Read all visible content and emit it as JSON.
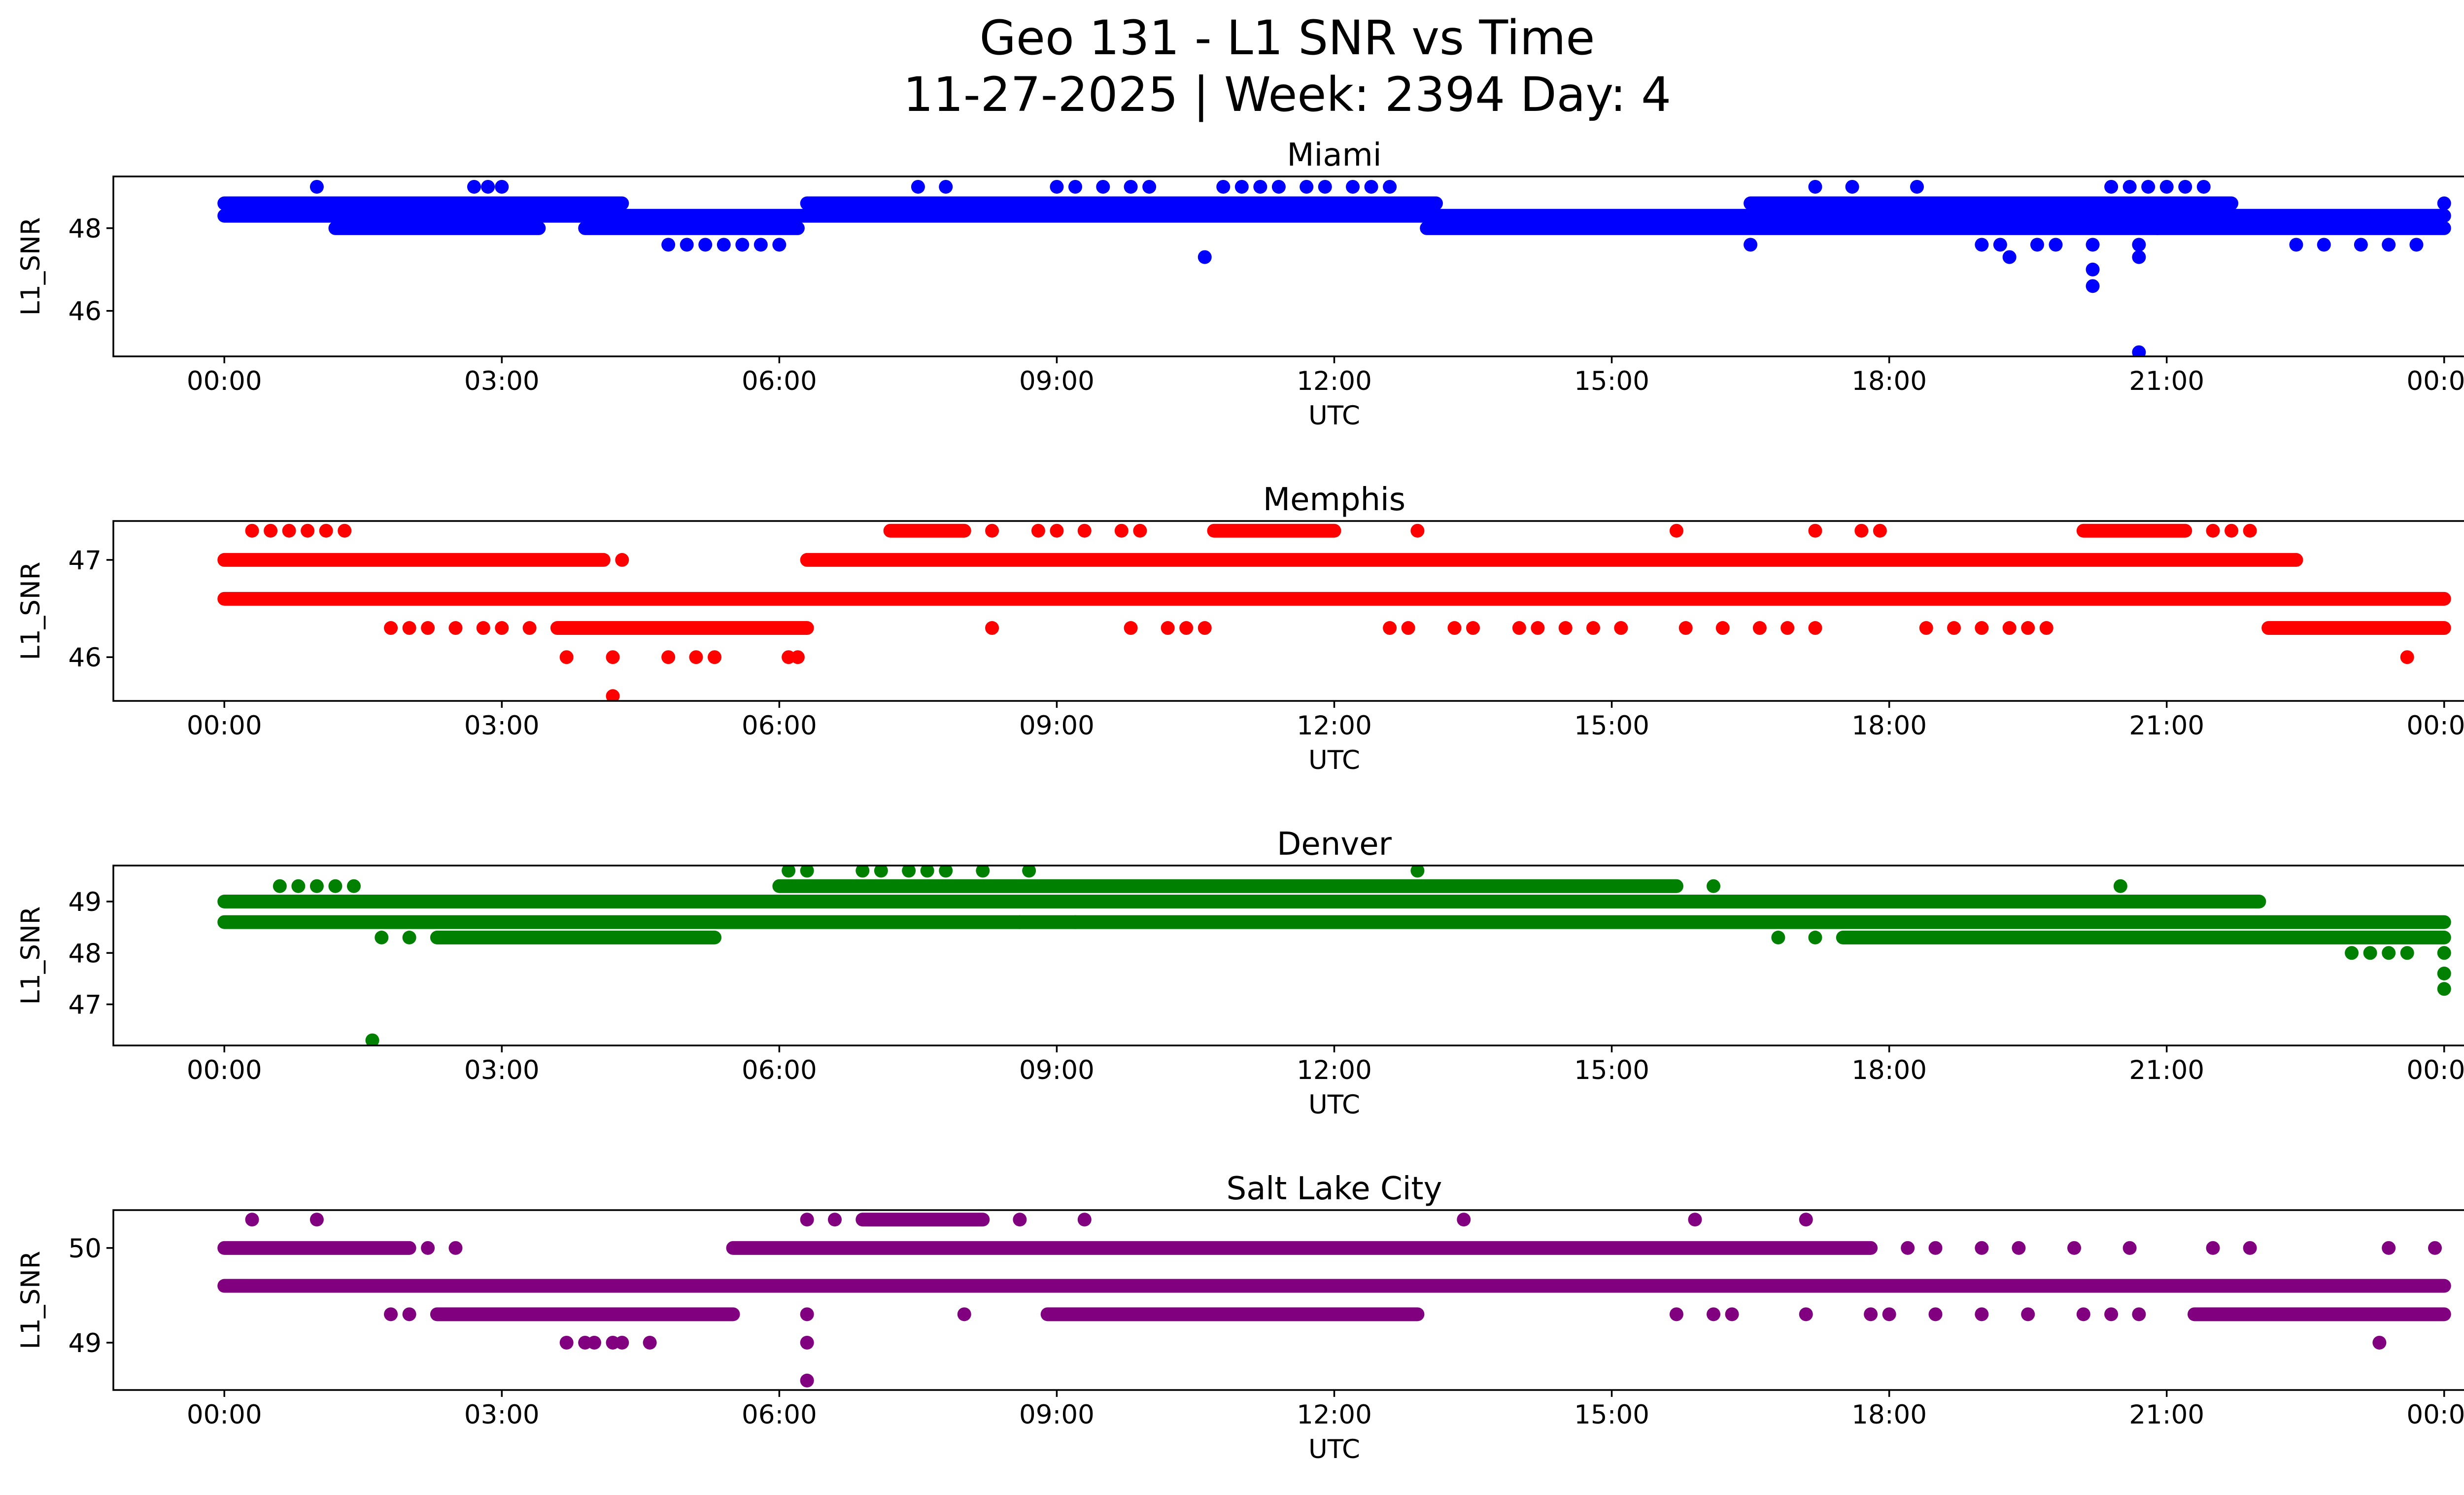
{
  "figure": {
    "title_line1": "Geo 131 - L1 SNR vs Time",
    "title_line2": "11-27-2025 | Week: 2394 Day: 4"
  },
  "chart_data": [
    {
      "type": "scatter",
      "title": "Miami",
      "xlabel": "UTC",
      "ylabel": "L1_SNR",
      "color": "#0000ff",
      "xlim_hours": [
        -1.2,
        25.2
      ],
      "ylim": [
        44.9,
        49.25
      ],
      "yticks": [
        46,
        48
      ],
      "ytick_labels": [
        "46",
        "48"
      ],
      "xticks_hours": [
        0,
        3,
        6,
        9,
        12,
        15,
        18,
        21,
        24
      ],
      "xtick_labels": [
        "00:00",
        "03:00",
        "06:00",
        "09:00",
        "12:00",
        "15:00",
        "18:00",
        "21:00",
        "00:00"
      ],
      "bands": [
        {
          "y": 48.3,
          "from": 0.0,
          "to": 24.0
        },
        {
          "y": 48.6,
          "from": 0.0,
          "to": 4.3
        },
        {
          "y": 48.6,
          "from": 6.3,
          "to": 13.1
        },
        {
          "y": 48.6,
          "from": 16.5,
          "to": 21.7
        },
        {
          "y": 48.0,
          "from": 1.2,
          "to": 3.4
        },
        {
          "y": 48.0,
          "from": 3.9,
          "to": 6.2
        },
        {
          "y": 48.0,
          "from": 13.0,
          "to": 24.0
        }
      ],
      "points": [
        [
          1.0,
          49.0
        ],
        [
          2.7,
          49.0
        ],
        [
          2.85,
          49.0
        ],
        [
          3.0,
          49.0
        ],
        [
          7.5,
          49.0
        ],
        [
          7.8,
          49.0
        ],
        [
          9.0,
          49.0
        ],
        [
          9.2,
          49.0
        ],
        [
          9.5,
          49.0
        ],
        [
          9.8,
          49.0
        ],
        [
          10.0,
          49.0
        ],
        [
          10.8,
          49.0
        ],
        [
          11.0,
          49.0
        ],
        [
          11.2,
          49.0
        ],
        [
          11.4,
          49.0
        ],
        [
          11.7,
          49.0
        ],
        [
          11.9,
          49.0
        ],
        [
          12.2,
          49.0
        ],
        [
          12.4,
          49.0
        ],
        [
          12.6,
          49.0
        ],
        [
          17.2,
          49.0
        ],
        [
          17.6,
          49.0
        ],
        [
          18.3,
          49.0
        ],
        [
          20.4,
          49.0
        ],
        [
          20.6,
          49.0
        ],
        [
          20.8,
          49.0
        ],
        [
          21.0,
          49.0
        ],
        [
          21.2,
          49.0
        ],
        [
          21.4,
          49.0
        ],
        [
          4.8,
          47.6
        ],
        [
          5.0,
          47.6
        ],
        [
          5.2,
          47.6
        ],
        [
          5.4,
          47.6
        ],
        [
          5.6,
          47.6
        ],
        [
          5.8,
          47.6
        ],
        [
          6.0,
          47.6
        ],
        [
          10.6,
          47.3
        ],
        [
          16.5,
          47.6
        ],
        [
          19.0,
          47.6
        ],
        [
          19.2,
          47.6
        ],
        [
          19.3,
          47.3
        ],
        [
          19.6,
          47.6
        ],
        [
          19.8,
          47.6
        ],
        [
          20.2,
          47.6
        ],
        [
          20.2,
          47.0
        ],
        [
          20.2,
          46.6
        ],
        [
          20.7,
          47.6
        ],
        [
          20.7,
          47.3
        ],
        [
          20.7,
          45.0
        ],
        [
          20.9,
          48.0
        ],
        [
          22.4,
          47.6
        ],
        [
          22.7,
          47.6
        ],
        [
          23.1,
          47.6
        ],
        [
          23.4,
          47.6
        ],
        [
          23.7,
          47.6
        ],
        [
          24.0,
          48.6
        ]
      ]
    },
    {
      "type": "scatter",
      "title": "Memphis",
      "xlabel": "UTC",
      "ylabel": "L1_SNR",
      "color": "#ff0000",
      "xlim_hours": [
        -1.2,
        25.2
      ],
      "ylim": [
        45.55,
        47.4
      ],
      "yticks": [
        46,
        47
      ],
      "ytick_labels": [
        "46",
        "47"
      ],
      "xticks_hours": [
        0,
        3,
        6,
        9,
        12,
        15,
        18,
        21,
        24
      ],
      "xtick_labels": [
        "00:00",
        "03:00",
        "06:00",
        "09:00",
        "12:00",
        "15:00",
        "18:00",
        "21:00",
        "00:00"
      ],
      "bands": [
        {
          "y": 46.6,
          "from": 0.0,
          "to": 24.0
        },
        {
          "y": 47.0,
          "from": 0.0,
          "to": 4.1
        },
        {
          "y": 47.0,
          "from": 6.3,
          "to": 22.4
        },
        {
          "y": 46.3,
          "from": 3.6,
          "to": 6.3
        },
        {
          "y": 46.3,
          "from": 22.1,
          "to": 24.0
        },
        {
          "y": 47.3,
          "from": 7.2,
          "to": 8.0
        },
        {
          "y": 47.3,
          "from": 10.7,
          "to": 12.0
        },
        {
          "y": 47.3,
          "from": 20.1,
          "to": 21.2
        }
      ],
      "points": [
        [
          0.3,
          47.3
        ],
        [
          0.5,
          47.3
        ],
        [
          0.7,
          47.3
        ],
        [
          0.9,
          47.3
        ],
        [
          1.1,
          47.3
        ],
        [
          1.3,
          47.3
        ],
        [
          8.3,
          47.3
        ],
        [
          8.8,
          47.3
        ],
        [
          9.0,
          47.3
        ],
        [
          9.3,
          47.3
        ],
        [
          9.7,
          47.3
        ],
        [
          9.9,
          47.3
        ],
        [
          12.9,
          47.3
        ],
        [
          15.7,
          47.3
        ],
        [
          17.2,
          47.3
        ],
        [
          17.7,
          47.3
        ],
        [
          17.9,
          47.3
        ],
        [
          21.5,
          47.3
        ],
        [
          21.7,
          47.3
        ],
        [
          21.9,
          47.3
        ],
        [
          4.3,
          47.0
        ],
        [
          1.8,
          46.3
        ],
        [
          2.0,
          46.3
        ],
        [
          2.2,
          46.3
        ],
        [
          2.5,
          46.3
        ],
        [
          2.8,
          46.3
        ],
        [
          3.0,
          46.3
        ],
        [
          3.3,
          46.3
        ],
        [
          8.3,
          46.3
        ],
        [
          9.8,
          46.3
        ],
        [
          10.2,
          46.3
        ],
        [
          10.4,
          46.3
        ],
        [
          10.6,
          46.3
        ],
        [
          12.6,
          46.3
        ],
        [
          12.8,
          46.3
        ],
        [
          13.3,
          46.3
        ],
        [
          13.5,
          46.3
        ],
        [
          14.0,
          46.3
        ],
        [
          14.2,
          46.3
        ],
        [
          14.5,
          46.3
        ],
        [
          14.8,
          46.3
        ],
        [
          15.1,
          46.3
        ],
        [
          15.8,
          46.3
        ],
        [
          16.2,
          46.3
        ],
        [
          16.6,
          46.3
        ],
        [
          16.9,
          46.3
        ],
        [
          17.2,
          46.3
        ],
        [
          18.4,
          46.3
        ],
        [
          18.7,
          46.3
        ],
        [
          19.0,
          46.3
        ],
        [
          19.3,
          46.3
        ],
        [
          19.5,
          46.3
        ],
        [
          19.7,
          46.3
        ],
        [
          3.7,
          46.0
        ],
        [
          4.2,
          46.0
        ],
        [
          4.8,
          46.0
        ],
        [
          5.1,
          46.0
        ],
        [
          5.3,
          46.0
        ],
        [
          6.1,
          46.0
        ],
        [
          6.2,
          46.0
        ],
        [
          23.6,
          46.0
        ],
        [
          4.2,
          45.6
        ]
      ]
    },
    {
      "type": "scatter",
      "title": "Denver",
      "xlabel": "UTC",
      "ylabel": "L1_SNR",
      "color": "#008000",
      "xlim_hours": [
        -1.2,
        25.2
      ],
      "ylim": [
        46.2,
        49.7
      ],
      "yticks": [
        47,
        48,
        49
      ],
      "ytick_labels": [
        "47",
        "48",
        "49"
      ],
      "xticks_hours": [
        0,
        3,
        6,
        9,
        12,
        15,
        18,
        21,
        24
      ],
      "xtick_labels": [
        "00:00",
        "03:00",
        "06:00",
        "09:00",
        "12:00",
        "15:00",
        "18:00",
        "21:00",
        "00:00"
      ],
      "bands": [
        {
          "y": 48.6,
          "from": 0.0,
          "to": 24.0
        },
        {
          "y": 49.0,
          "from": 0.0,
          "to": 22.0
        },
        {
          "y": 49.3,
          "from": 6.0,
          "to": 15.7
        },
        {
          "y": 48.3,
          "from": 2.3,
          "to": 5.3
        },
        {
          "y": 48.3,
          "from": 17.5,
          "to": 24.0
        }
      ],
      "points": [
        [
          0.6,
          49.3
        ],
        [
          0.8,
          49.3
        ],
        [
          1.0,
          49.3
        ],
        [
          1.2,
          49.3
        ],
        [
          1.4,
          49.3
        ],
        [
          16.1,
          49.3
        ],
        [
          20.5,
          49.3
        ],
        [
          6.1,
          49.6
        ],
        [
          6.3,
          49.6
        ],
        [
          6.9,
          49.6
        ],
        [
          7.1,
          49.6
        ],
        [
          7.4,
          49.6
        ],
        [
          7.6,
          49.6
        ],
        [
          7.8,
          49.6
        ],
        [
          8.2,
          49.6
        ],
        [
          8.7,
          49.6
        ],
        [
          12.9,
          49.6
        ],
        [
          1.7,
          48.3
        ],
        [
          2.0,
          48.3
        ],
        [
          8.6,
          48.6
        ],
        [
          9.2,
          48.6
        ],
        [
          16.8,
          48.3
        ],
        [
          17.2,
          48.3
        ],
        [
          22.5,
          48.3
        ],
        [
          22.7,
          48.3
        ],
        [
          23.0,
          48.0
        ],
        [
          23.2,
          48.0
        ],
        [
          23.4,
          48.0
        ],
        [
          23.6,
          48.0
        ],
        [
          24.0,
          48.0
        ],
        [
          24.0,
          47.6
        ],
        [
          24.0,
          47.3
        ],
        [
          1.6,
          46.3
        ]
      ]
    },
    {
      "type": "scatter",
      "title": "Salt Lake City",
      "xlabel": "UTC",
      "ylabel": "L1_SNR",
      "color": "#800080",
      "xlim_hours": [
        -1.2,
        25.2
      ],
      "ylim": [
        48.5,
        50.4
      ],
      "yticks": [
        49,
        50
      ],
      "ytick_labels": [
        "49",
        "50"
      ],
      "xticks_hours": [
        0,
        3,
        6,
        9,
        12,
        15,
        18,
        21,
        24
      ],
      "xtick_labels": [
        "00:00",
        "03:00",
        "06:00",
        "09:00",
        "12:00",
        "15:00",
        "18:00",
        "21:00",
        "00:00"
      ],
      "bands": [
        {
          "y": 49.6,
          "from": 0.0,
          "to": 24.0
        },
        {
          "y": 50.0,
          "from": 0.0,
          "to": 2.0
        },
        {
          "y": 50.0,
          "from": 5.5,
          "to": 17.8
        },
        {
          "y": 49.3,
          "from": 2.3,
          "to": 5.5
        },
        {
          "y": 49.3,
          "from": 8.9,
          "to": 12.9
        },
        {
          "y": 49.3,
          "from": 21.3,
          "to": 24.0
        },
        {
          "y": 50.3,
          "from": 6.9,
          "to": 8.2
        }
      ],
      "points": [
        [
          0.3,
          50.3
        ],
        [
          1.0,
          50.3
        ],
        [
          6.3,
          50.3
        ],
        [
          6.6,
          50.3
        ],
        [
          8.6,
          50.3
        ],
        [
          9.3,
          50.3
        ],
        [
          13.4,
          50.3
        ],
        [
          15.9,
          50.3
        ],
        [
          17.1,
          50.3
        ],
        [
          2.2,
          50.0
        ],
        [
          2.5,
          50.0
        ],
        [
          18.2,
          50.0
        ],
        [
          18.5,
          50.0
        ],
        [
          19.0,
          50.0
        ],
        [
          19.4,
          50.0
        ],
        [
          20.0,
          50.0
        ],
        [
          20.6,
          50.0
        ],
        [
          21.5,
          50.0
        ],
        [
          21.9,
          50.0
        ],
        [
          23.4,
          50.0
        ],
        [
          23.9,
          50.0
        ],
        [
          1.8,
          49.3
        ],
        [
          2.0,
          49.3
        ],
        [
          6.3,
          49.3
        ],
        [
          6.3,
          49.0
        ],
        [
          6.3,
          48.6
        ],
        [
          8.0,
          49.3
        ],
        [
          15.7,
          49.3
        ],
        [
          16.1,
          49.3
        ],
        [
          16.3,
          49.3
        ],
        [
          17.1,
          49.3
        ],
        [
          17.8,
          49.3
        ],
        [
          18.0,
          49.3
        ],
        [
          18.5,
          49.3
        ],
        [
          19.0,
          49.3
        ],
        [
          19.5,
          49.3
        ],
        [
          20.1,
          49.3
        ],
        [
          20.4,
          49.3
        ],
        [
          20.7,
          49.3
        ],
        [
          3.7,
          49.0
        ],
        [
          3.9,
          49.0
        ],
        [
          4.0,
          49.0
        ],
        [
          4.2,
          49.0
        ],
        [
          4.3,
          49.0
        ],
        [
          4.6,
          49.0
        ],
        [
          23.3,
          49.0
        ]
      ]
    }
  ]
}
